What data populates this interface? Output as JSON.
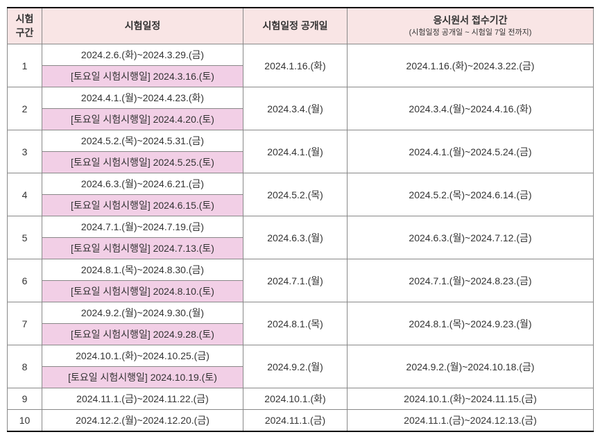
{
  "headers": {
    "period": "시험\n구간",
    "schedule": "시험일정",
    "announce": "시험일정\n공개일",
    "apply": "응시원서 접수기간",
    "apply_sub": "(시험일정 공개일 ~ 시험일 7일 전까지)"
  },
  "rows": [
    {
      "num": "1",
      "schedule1": "2024.2.6.(화)~2024.3.29.(금)",
      "schedule2": "[토요일 시험시행일] 2024.3.16.(토)",
      "announce": "2024.1.16.(화)",
      "apply": "2024.1.16.(화)~2024.3.22.(금)"
    },
    {
      "num": "2",
      "schedule1": "2024.4.1.(월)~2024.4.23.(화)",
      "schedule2": "[토요일 시험시행일] 2024.4.20.(토)",
      "announce": "2024.3.4.(월)",
      "apply": "2024.3.4.(월)~2024.4.16.(화)"
    },
    {
      "num": "3",
      "schedule1": "2024.5.2.(목)~2024.5.31.(금)",
      "schedule2": "[토요일 시험시행일] 2024.5.25.(토)",
      "announce": "2024.4.1.(월)",
      "apply": "2024.4.1.(월)~2024.5.24.(금)"
    },
    {
      "num": "4",
      "schedule1": "2024.6.3.(월)~2024.6.21.(금)",
      "schedule2": "[토요일 시험시행일] 2024.6.15.(토)",
      "announce": "2024.5.2.(목)",
      "apply": "2024.5.2.(목)~2024.6.14.(금)"
    },
    {
      "num": "5",
      "schedule1": "2024.7.1.(월)~2024.7.19.(금)",
      "schedule2": "[토요일 시험시행일] 2024.7.13.(토)",
      "announce": "2024.6.3.(월)",
      "apply": "2024.6.3.(월)~2024.7.12.(금)"
    },
    {
      "num": "6",
      "schedule1": "2024.8.1.(목)~2024.8.30.(금)",
      "schedule2": "[토요일 시험시행일] 2024.8.10.(토)",
      "announce": "2024.7.1.(월)",
      "apply": "2024.7.1.(월)~2024.8.23.(금)"
    },
    {
      "num": "7",
      "schedule1": "2024.9.2.(월)~2024.9.30.(월)",
      "schedule2": "[토요일 시험시행일] 2024.9.28.(토)",
      "announce": "2024.8.1.(목)",
      "apply": "2024.8.1.(목)~2024.9.23.(월)"
    },
    {
      "num": "8",
      "schedule1": "2024.10.1.(화)~2024.10.25.(금)",
      "schedule2": "[토요일 시험시행일] 2024.10.19.(토)",
      "announce": "2024.9.2.(월)",
      "apply": "2024.9.2.(월)~2024.10.18.(금)"
    },
    {
      "num": "9",
      "schedule1": "2024.11.1.(금)~2024.11.22.(금)",
      "announce": "2024.10.1.(화)",
      "apply": "2024.10.1.(화)~2024.11.15.(금)"
    },
    {
      "num": "10",
      "schedule1": "2024.12.2.(월)~2024.12.20.(금)",
      "announce": "2024.11.1.(금)",
      "apply": "2024.11.1.(금)~2024.12.13.(금)"
    }
  ]
}
